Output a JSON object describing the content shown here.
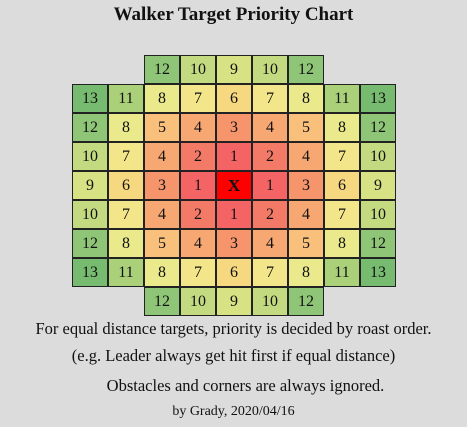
{
  "title": "Walker Target Priority Chart",
  "grid": {
    "rows": [
      [
        "",
        "",
        "12",
        "10",
        "9",
        "10",
        "12",
        "",
        ""
      ],
      [
        "13",
        "11",
        "8",
        "7",
        "6",
        "7",
        "8",
        "11",
        "13"
      ],
      [
        "12",
        "8",
        "5",
        "4",
        "3",
        "4",
        "5",
        "8",
        "12"
      ],
      [
        "10",
        "7",
        "4",
        "2",
        "1",
        "2",
        "4",
        "7",
        "10"
      ],
      [
        "9",
        "6",
        "3",
        "1",
        "X",
        "1",
        "3",
        "6",
        "9"
      ],
      [
        "10",
        "7",
        "4",
        "2",
        "1",
        "2",
        "4",
        "7",
        "10"
      ],
      [
        "12",
        "8",
        "5",
        "4",
        "3",
        "4",
        "5",
        "8",
        "12"
      ],
      [
        "13",
        "11",
        "8",
        "7",
        "6",
        "7",
        "8",
        "11",
        "13"
      ],
      [
        "",
        "",
        "12",
        "10",
        "9",
        "10",
        "12",
        "",
        ""
      ]
    ],
    "colors": {
      "X": "#ff0000",
      "1": "#f46464",
      "2": "#f47a68",
      "3": "#f6946c",
      "4": "#f7a872",
      "5": "#f8c07a",
      "6": "#f5d880",
      "7": "#f3e68a",
      "8": "#eaea8c",
      "9": "#d6e283",
      "10": "#c4da80",
      "11": "#abd07a",
      "12": "#8fc577",
      "13": "#76bb6f"
    }
  },
  "notes": [
    "For equal distance targets, priority is decided by roast order.",
    "(e.g. Leader always get hit first if equal distance)",
    "Obstacles and corners are always ignored.",
    "by Grady, 2020/04/16"
  ]
}
